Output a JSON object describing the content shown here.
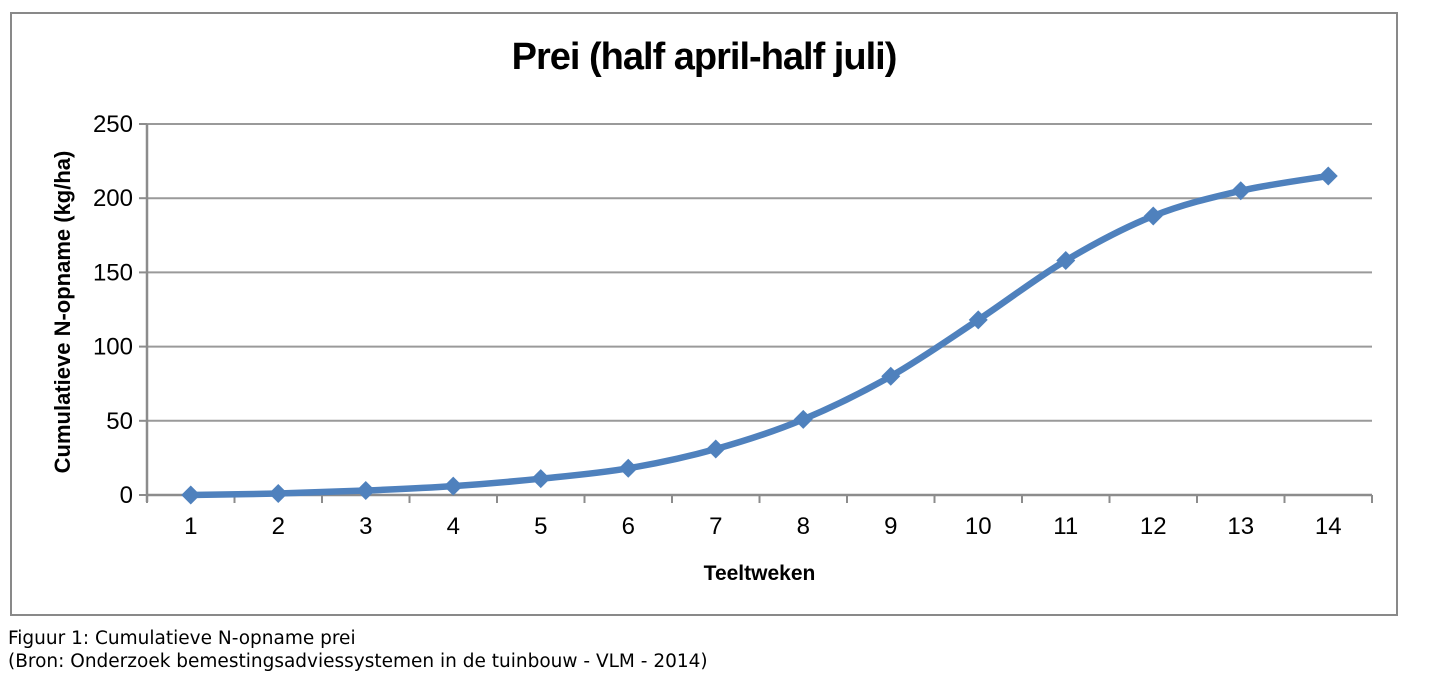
{
  "chart_data": {
    "type": "line",
    "title": "Prei (half april-half juli)",
    "xlabel": "Teeltweken",
    "ylabel": "Cumulatieve N-opname (kg/ha)",
    "categories": [
      "1",
      "2",
      "3",
      "4",
      "5",
      "6",
      "7",
      "8",
      "9",
      "10",
      "11",
      "12",
      "13",
      "14"
    ],
    "values": [
      0,
      1,
      3,
      6,
      11,
      18,
      31,
      51,
      80,
      118,
      158,
      188,
      205,
      215
    ],
    "ylim": [
      0,
      250
    ],
    "yticks": [
      0,
      50,
      100,
      150,
      200,
      250
    ],
    "grid": "horizontal",
    "legend": "none",
    "marker": "diamond",
    "smoothed": true,
    "colors": {
      "series": "#4F81BD",
      "gridline": "#9a9a9a",
      "axis": "#8c8c8c",
      "frame_border": "#898989",
      "text": "#000000"
    }
  },
  "caption": {
    "line1": "Figuur 1: Cumulatieve N-opname prei",
    "line2": "(Bron: Onderzoek bemestingsadviessystemen in de tuinbouw - VLM - 2014)"
  }
}
